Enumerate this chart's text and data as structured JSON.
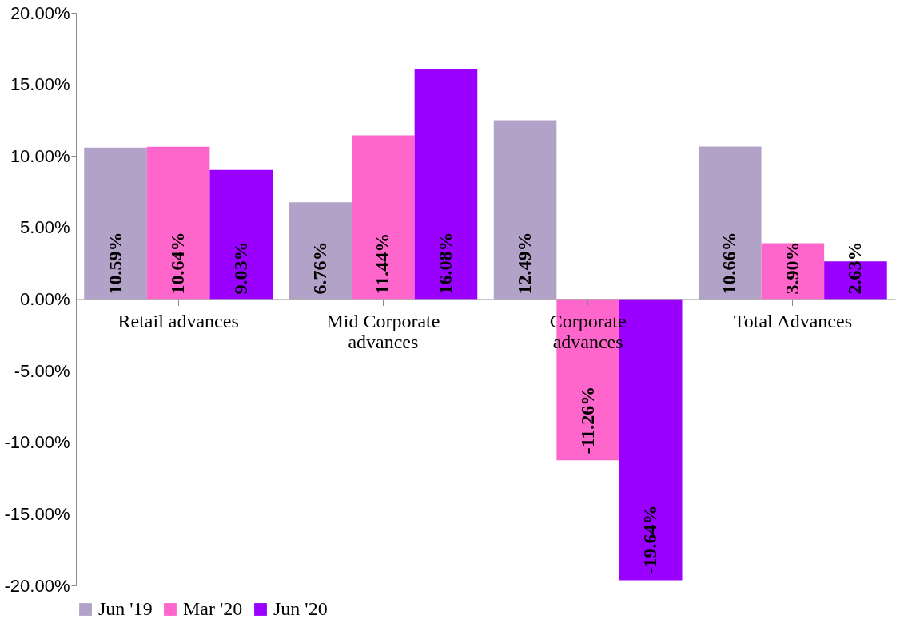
{
  "chart_data": {
    "type": "bar",
    "categories": [
      "Retail advances",
      "Mid Corporate advances",
      "Corporate advances",
      "Total Advances"
    ],
    "series": [
      {
        "name": "Jun '19",
        "color": "#b3a2c7",
        "values": [
          10.59,
          6.76,
          12.49,
          10.66
        ],
        "value_labels": [
          "10.59%",
          "6.76%",
          "12.49%",
          "10.66%"
        ]
      },
      {
        "name": "Mar '20",
        "color": "#ff66cc",
        "values": [
          10.64,
          11.44,
          -11.26,
          3.9
        ],
        "value_labels": [
          "10.64%",
          "11.44%",
          "-11.26%",
          "3.90%"
        ]
      },
      {
        "name": "Jun '20",
        "color": "#9900ff",
        "values": [
          9.03,
          16.08,
          -19.64,
          2.63
        ],
        "value_labels": [
          "9.03%",
          "16.08%",
          "-19.64%",
          "2.63%"
        ]
      }
    ],
    "ylim": [
      -20,
      20
    ],
    "yticks": [
      {
        "value": -20,
        "label": "-20.00%"
      },
      {
        "value": -15,
        "label": "-15.00%"
      },
      {
        "value": -10,
        "label": "-10.00%"
      },
      {
        "value": -5,
        "label": "-5.00%"
      },
      {
        "value": 0,
        "label": "0.00%"
      },
      {
        "value": 5,
        "label": "5.00%"
      },
      {
        "value": 10,
        "label": "10.00%"
      },
      {
        "value": 15,
        "label": "15.00%"
      },
      {
        "value": 20,
        "label": "20.00%"
      }
    ],
    "grid": false,
    "legend": "bottom"
  }
}
